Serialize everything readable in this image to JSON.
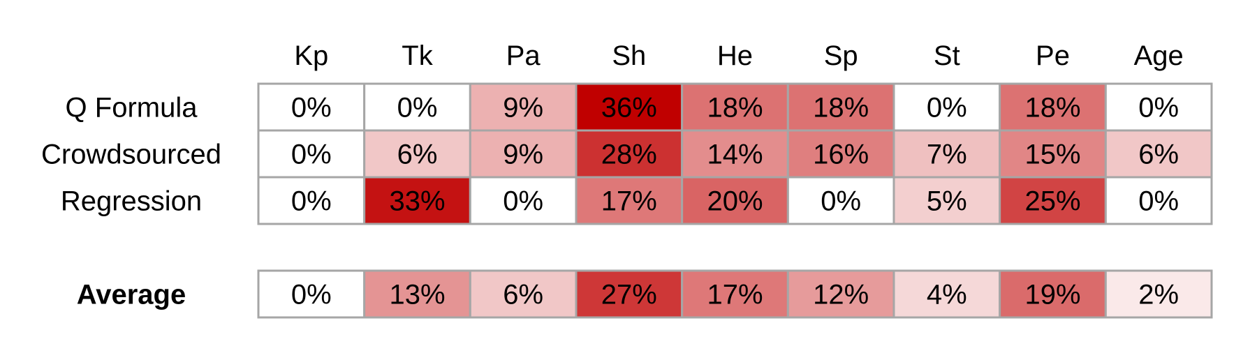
{
  "chart_data": {
    "type": "heatmap",
    "columns": [
      "Kp",
      "Tk",
      "Pa",
      "Sh",
      "He",
      "Sp",
      "St",
      "Pe",
      "Age"
    ],
    "rows": [
      {
        "label": "Q Formula",
        "values": [
          0,
          0,
          9,
          36,
          18,
          18,
          0,
          18,
          0
        ]
      },
      {
        "label": "Crowdsourced",
        "values": [
          0,
          6,
          9,
          28,
          14,
          16,
          7,
          15,
          6
        ]
      },
      {
        "label": "Regression",
        "values": [
          0,
          33,
          0,
          17,
          20,
          0,
          5,
          25,
          0
        ]
      }
    ],
    "summary_row": {
      "label": "Average",
      "values": [
        0,
        13,
        6,
        27,
        17,
        12,
        4,
        19,
        2
      ]
    },
    "value_format": "percent",
    "color_scale": {
      "low": "#ffffff",
      "high": "#c00000"
    },
    "grid_color": "#a6a6a6"
  }
}
